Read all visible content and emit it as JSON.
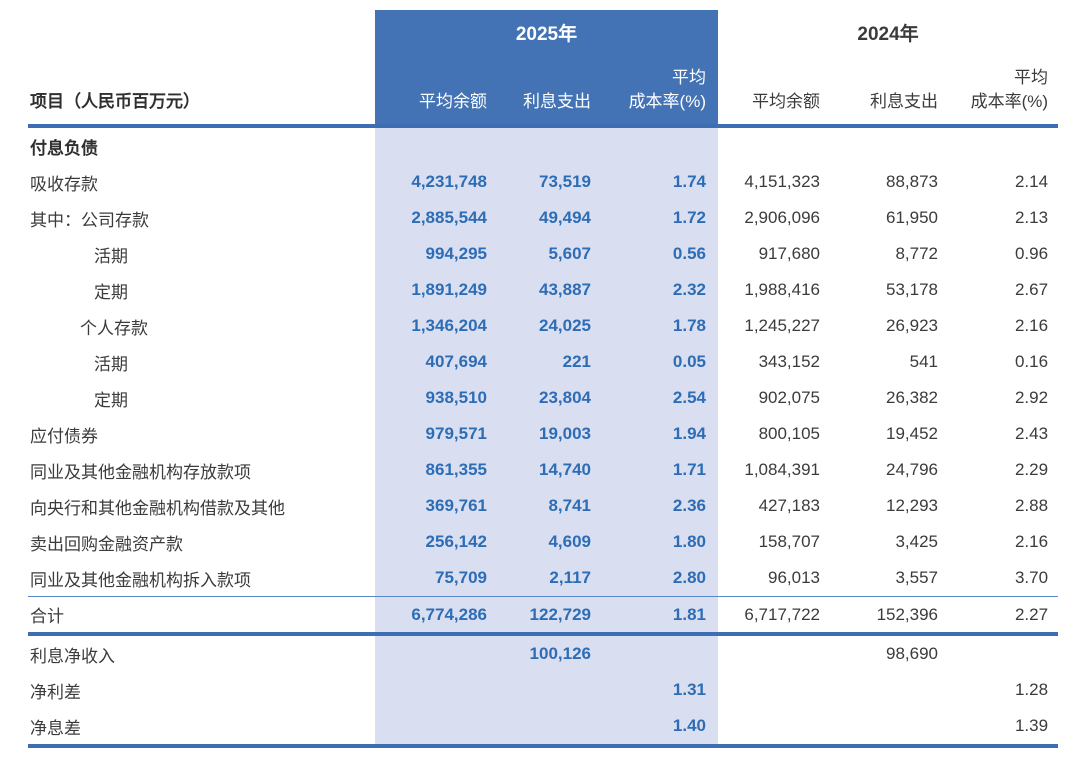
{
  "colors": {
    "header_blue": "#4373b5",
    "light_column_blue": "#d9dff1",
    "accent_number_blue": "#2d6db6",
    "rule_line_blue": "#3d6eb4",
    "text_dark": "#3b3b3b"
  },
  "header": {
    "item_label": "项目（人民币百万元）",
    "group_2025": "2025年",
    "group_2024": "2024年",
    "col_avg_balance": "平均余额",
    "col_interest_expense": "利息支出",
    "col_avg_cost_line1": "平均",
    "col_avg_cost_line2": "成本率(%)"
  },
  "section_title": "付息负债",
  "rows": [
    {
      "label": "吸收存款",
      "b25": "4,231,748",
      "e25": "73,519",
      "c25": "1.74",
      "b24": "4,151,323",
      "e24": "88,873",
      "c24": "2.14"
    },
    {
      "label": "其中：公司存款",
      "b25": "2,885,544",
      "e25": "49,494",
      "c25": "1.72",
      "b24": "2,906,096",
      "e24": "61,950",
      "c24": "2.13"
    },
    {
      "label": "活期",
      "b25": "994,295",
      "e25": "5,607",
      "c25": "0.56",
      "b24": "917,680",
      "e24": "8,772",
      "c24": "0.96"
    },
    {
      "label": "定期",
      "b25": "1,891,249",
      "e25": "43,887",
      "c25": "2.32",
      "b24": "1,988,416",
      "e24": "53,178",
      "c24": "2.67"
    },
    {
      "label": "个人存款",
      "b25": "1,346,204",
      "e25": "24,025",
      "c25": "1.78",
      "b24": "1,245,227",
      "e24": "26,923",
      "c24": "2.16"
    },
    {
      "label": "活期",
      "b25": "407,694",
      "e25": "221",
      "c25": "0.05",
      "b24": "343,152",
      "e24": "541",
      "c24": "0.16"
    },
    {
      "label": "定期",
      "b25": "938,510",
      "e25": "23,804",
      "c25": "2.54",
      "b24": "902,075",
      "e24": "26,382",
      "c24": "2.92"
    },
    {
      "label": "应付债券",
      "b25": "979,571",
      "e25": "19,003",
      "c25": "1.94",
      "b24": "800,105",
      "e24": "19,452",
      "c24": "2.43"
    },
    {
      "label": "同业及其他金融机构存放款项",
      "b25": "861,355",
      "e25": "14,740",
      "c25": "1.71",
      "b24": "1,084,391",
      "e24": "24,796",
      "c24": "2.29"
    },
    {
      "label": "向央行和其他金融机构借款及其他",
      "b25": "369,761",
      "e25": "8,741",
      "c25": "2.36",
      "b24": "427,183",
      "e24": "12,293",
      "c24": "2.88"
    },
    {
      "label": "卖出回购金融资产款",
      "b25": "256,142",
      "e25": "4,609",
      "c25": "1.80",
      "b24": "158,707",
      "e24": "3,425",
      "c24": "2.16"
    },
    {
      "label": "同业及其他金融机构拆入款项",
      "b25": "75,709",
      "e25": "2,117",
      "c25": "2.80",
      "b24": "96,013",
      "e24": "3,557",
      "c24": "3.70"
    }
  ],
  "total": {
    "label": "合计",
    "b25": "6,774,286",
    "e25": "122,729",
    "c25": "1.81",
    "b24": "6,717,722",
    "e24": "152,396",
    "c24": "2.27"
  },
  "summary": [
    {
      "label": "利息净收入",
      "e25": "100,126",
      "e24": "98,690"
    },
    {
      "label": "净利差",
      "c25": "1.31",
      "c24": "1.28"
    },
    {
      "label": "净息差",
      "c25": "1.40",
      "c24": "1.39"
    }
  ]
}
